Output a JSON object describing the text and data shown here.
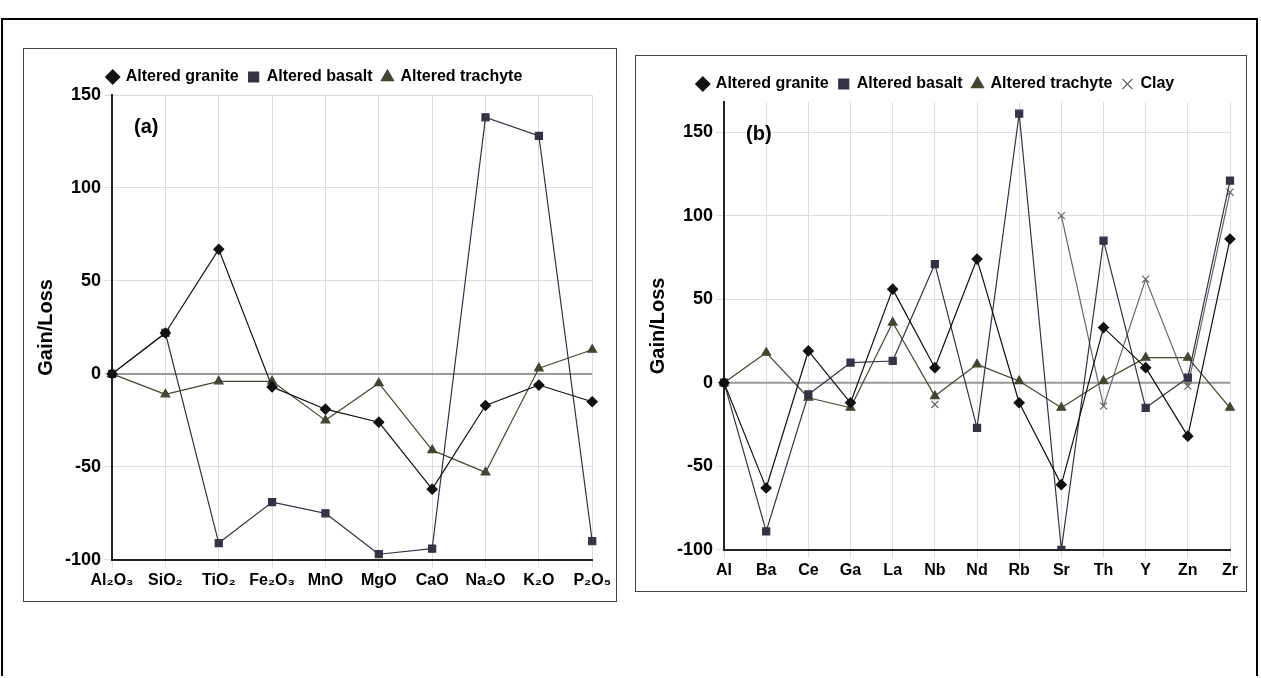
{
  "chart_data": [
    {
      "type": "line",
      "ylabel": "Gain/Loss",
      "annotations": [
        "(a)"
      ],
      "categories": [
        "Al₂O₃",
        "SiO₂",
        "TiO₂",
        "Fe₂O₃",
        "MnO",
        "MgO",
        "CaO",
        "Na₂O",
        "K₂O",
        "P₂O₅"
      ],
      "series": [
        {
          "name": "Altered granite",
          "color": "#111111",
          "marker": "diamond",
          "values": [
            0,
            22,
            67,
            -7,
            -19,
            -26,
            -62,
            -17,
            -6,
            -15
          ]
        },
        {
          "name": "Altered basalt",
          "color": "#333344",
          "marker": "square",
          "values": [
            0,
            22,
            -91,
            -69,
            -75,
            -97,
            -94,
            138,
            128,
            -90
          ]
        },
        {
          "name": "Altered trachyte",
          "color": "#444433",
          "marker": "triangle",
          "values": [
            0,
            -11,
            -4,
            -4,
            -25,
            -5,
            -41,
            -53,
            3,
            13
          ]
        }
      ],
      "ylim": [
        -100,
        150
      ],
      "yticks": [
        -100,
        -50,
        0,
        50,
        100,
        150
      ],
      "grid": true,
      "legend": "top",
      "ref_lines": [
        {
          "axis": "y",
          "value": 0,
          "color": "#999999"
        }
      ]
    },
    {
      "type": "line",
      "ylabel": "Gain/Loss",
      "annotations": [
        "(b)"
      ],
      "categories": [
        "Al",
        "Ba",
        "Ce",
        "Ga",
        "La",
        "Nb",
        "Nd",
        "Rb",
        "Sr",
        "Th",
        "Y",
        "Zn",
        "Zr"
      ],
      "series": [
        {
          "name": "Altered granite",
          "color": "#111111",
          "marker": "diamond",
          "values": [
            0,
            -63,
            19,
            -12,
            56,
            9,
            74,
            -12,
            -61,
            33,
            9,
            -32,
            86
          ]
        },
        {
          "name": "Altered basalt",
          "color": "#333344",
          "marker": "square",
          "values": [
            0,
            -89,
            -7,
            12,
            13,
            71,
            -27,
            161,
            -100,
            85,
            -15,
            3,
            121
          ]
        },
        {
          "name": "Altered trachyte",
          "color": "#444433",
          "marker": "triangle",
          "values": [
            0,
            18,
            -9,
            -15,
            36,
            -8,
            11,
            1,
            -15,
            1,
            15,
            15,
            -15
          ]
        },
        {
          "name": "Clay",
          "color": "#666666",
          "marker": "cross",
          "values": [
            null,
            null,
            null,
            null,
            null,
            -13,
            null,
            null,
            100,
            -14,
            62,
            -2,
            114
          ]
        }
      ],
      "ylim": [
        -100,
        168
      ],
      "yticks": [
        -100,
        -50,
        0,
        50,
        100,
        150
      ],
      "grid": true,
      "legend": "top",
      "ref_lines": [
        {
          "axis": "y",
          "value": 0,
          "color": "#999999"
        }
      ]
    }
  ]
}
